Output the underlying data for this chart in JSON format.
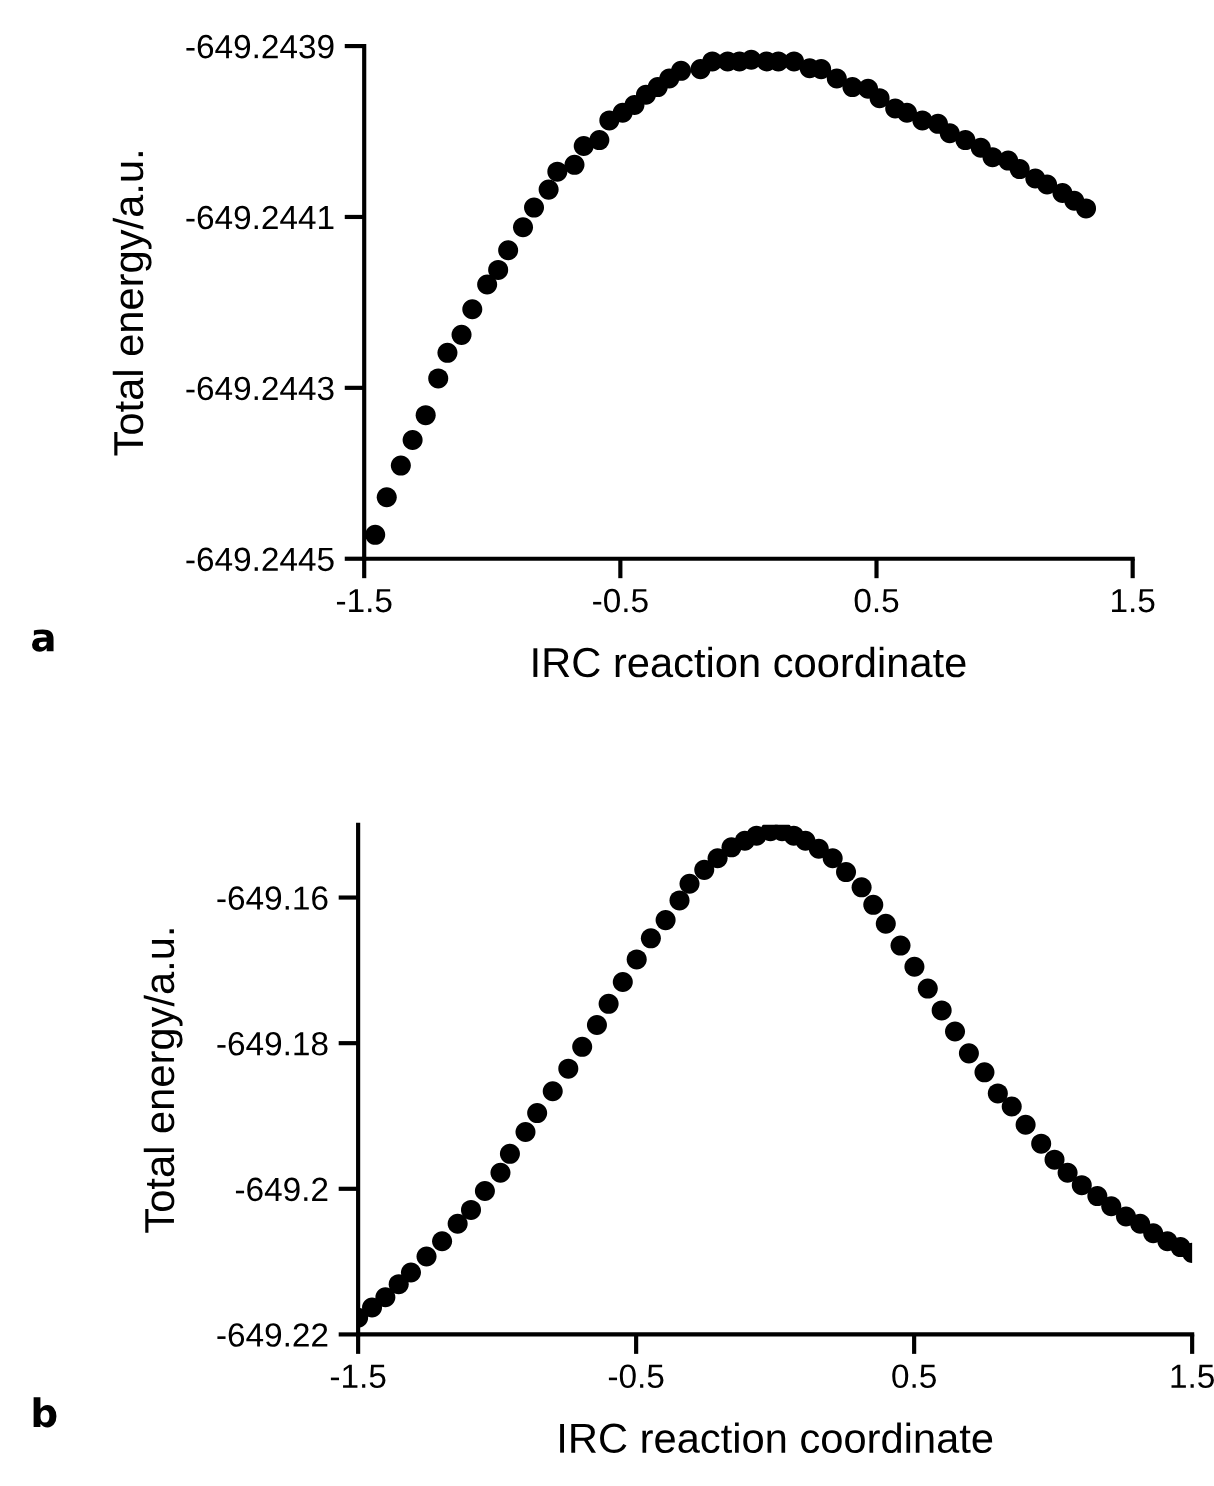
{
  "chart_data": [
    {
      "type": "scatter",
      "xlabel": "IRC reaction coordinate",
      "ylabel": "Total energy/a.u.",
      "annotations": [
        "a"
      ],
      "marker": "circle",
      "grid": false,
      "xlim": [
        -1.5,
        1.5
      ],
      "xticks": [
        {
          "value": -1.5,
          "label": "-1.5"
        },
        {
          "value": -0.5,
          "label": "-0.5"
        },
        {
          "value": 0.5,
          "label": "0.5"
        },
        {
          "value": 1.5,
          "label": "1.5"
        }
      ],
      "ylim": [
        -649.2445,
        -649.2439
      ],
      "yticks": [
        {
          "value": -649.2445,
          "label": "-649.2445"
        },
        {
          "value": -649.2443,
          "label": "-649.2443"
        },
        {
          "value": -649.2441,
          "label": "-649.2441"
        },
        {
          "value": -649.2439,
          "label": "-649.2439"
        }
      ],
      "series": [
        {
          "color": "#000000",
          "x": [
            -1.457,
            -1.412,
            -1.357,
            -1.311,
            -1.26,
            -1.211,
            -1.175,
            -1.12,
            -1.078,
            -1.02,
            -0.977,
            -0.938,
            -0.88,
            -0.837,
            -0.78,
            -0.746,
            -0.679,
            -0.643,
            -0.582,
            -0.543,
            -0.491,
            -0.445,
            -0.4,
            -0.354,
            -0.309,
            -0.263,
            -0.187,
            -0.141,
            -0.081,
            -0.035,
            0.011,
            0.071,
            0.117,
            0.178,
            0.239,
            0.284,
            0.345,
            0.406,
            0.467,
            0.512,
            0.573,
            0.619,
            0.679,
            0.74,
            0.786,
            0.847,
            0.907,
            0.953,
            1.014,
            1.059,
            1.12,
            1.166,
            1.226,
            1.272,
            1.318
          ],
          "values": [
            -649.244472,
            -649.244428,
            -649.244391,
            -649.244361,
            -649.244332,
            -649.244289,
            -649.244259,
            -649.244238,
            -649.244208,
            -649.244179,
            -649.244162,
            -649.244139,
            -649.244112,
            -649.244089,
            -649.244068,
            -649.244047,
            -649.244039,
            -649.244017,
            -649.24401,
            -649.243987,
            -649.243978,
            -649.243969,
            -649.243957,
            -649.243948,
            -649.243938,
            -649.243929,
            -649.243927,
            -649.243918,
            -649.243918,
            -649.243918,
            -649.243916,
            -649.243918,
            -649.243918,
            -649.243918,
            -649.243926,
            -649.243927,
            -649.243938,
            -649.243948,
            -649.24395,
            -649.243961,
            -649.243973,
            -649.243978,
            -649.243987,
            -649.243991,
            -649.244002,
            -649.24401,
            -649.244019,
            -649.24403,
            -649.244034,
            -649.244044,
            -649.244055,
            -649.244062,
            -649.244072,
            -649.244081,
            -649.24409
          ]
        }
      ]
    },
    {
      "type": "scatter",
      "xlabel": "IRC reaction coordinate",
      "ylabel": "Total energy/a.u.",
      "annotations": [
        "b"
      ],
      "marker": "circle",
      "grid": false,
      "xlim": [
        -1.5,
        1.5
      ],
      "xticks": [
        {
          "value": -1.5,
          "label": "-1.5"
        },
        {
          "value": -0.5,
          "label": "-0.5"
        },
        {
          "value": 0.5,
          "label": "0.5"
        },
        {
          "value": 1.5,
          "label": "1.5"
        }
      ],
      "ylim": [
        -649.22,
        -649.15
      ],
      "yticks": [
        {
          "value": -649.22,
          "label": "-649.22"
        },
        {
          "value": -649.2,
          "label": "-649.2"
        },
        {
          "value": -649.18,
          "label": "-649.18"
        },
        {
          "value": -649.16,
          "label": "-649.16"
        }
      ],
      "series": [
        {
          "color": "#000000",
          "x": [
            -1.5,
            -1.45,
            -1.402,
            -1.354,
            -1.31,
            -1.254,
            -1.198,
            -1.142,
            -1.094,
            -1.044,
            -0.988,
            -0.954,
            -0.898,
            -0.856,
            -0.8,
            -0.744,
            -0.694,
            -0.641,
            -0.599,
            -0.548,
            -0.498,
            -0.447,
            -0.394,
            -0.344,
            -0.308,
            -0.255,
            -0.207,
            -0.157,
            -0.109,
            -0.067,
            -0.017,
            0.025,
            0.067,
            0.109,
            0.157,
            0.207,
            0.255,
            0.311,
            0.353,
            0.398,
            0.451,
            0.501,
            0.549,
            0.599,
            0.647,
            0.697,
            0.753,
            0.801,
            0.851,
            0.901,
            0.957,
            1.005,
            1.052,
            1.103,
            1.159,
            1.209,
            1.262,
            1.313,
            1.36,
            1.411,
            1.458,
            1.5
          ],
          "values": [
            -649.2177,
            -649.2163,
            -649.2149,
            -649.2131,
            -649.2115,
            -649.2093,
            -649.2072,
            -649.2048,
            -649.2029,
            -649.2003,
            -649.1978,
            -649.1952,
            -649.1922,
            -649.1896,
            -649.1866,
            -649.1835,
            -649.1805,
            -649.1775,
            -649.1746,
            -649.1716,
            -649.1685,
            -649.1656,
            -649.1631,
            -649.1604,
            -649.1581,
            -649.1562,
            -649.1546,
            -649.1531,
            -649.1522,
            -649.1515,
            -649.1509,
            -649.1509,
            -649.1515,
            -649.1522,
            -649.1533,
            -649.1546,
            -649.1565,
            -649.1586,
            -649.161,
            -649.1636,
            -649.1666,
            -649.1695,
            -649.1725,
            -649.1755,
            -649.1784,
            -649.1814,
            -649.184,
            -649.1869,
            -649.1887,
            -649.1912,
            -649.1938,
            -649.196,
            -649.1978,
            -649.1995,
            -649.201,
            -649.2024,
            -649.2038,
            -649.2048,
            -649.2061,
            -649.2072,
            -649.208,
            -649.2088
          ]
        }
      ]
    }
  ]
}
